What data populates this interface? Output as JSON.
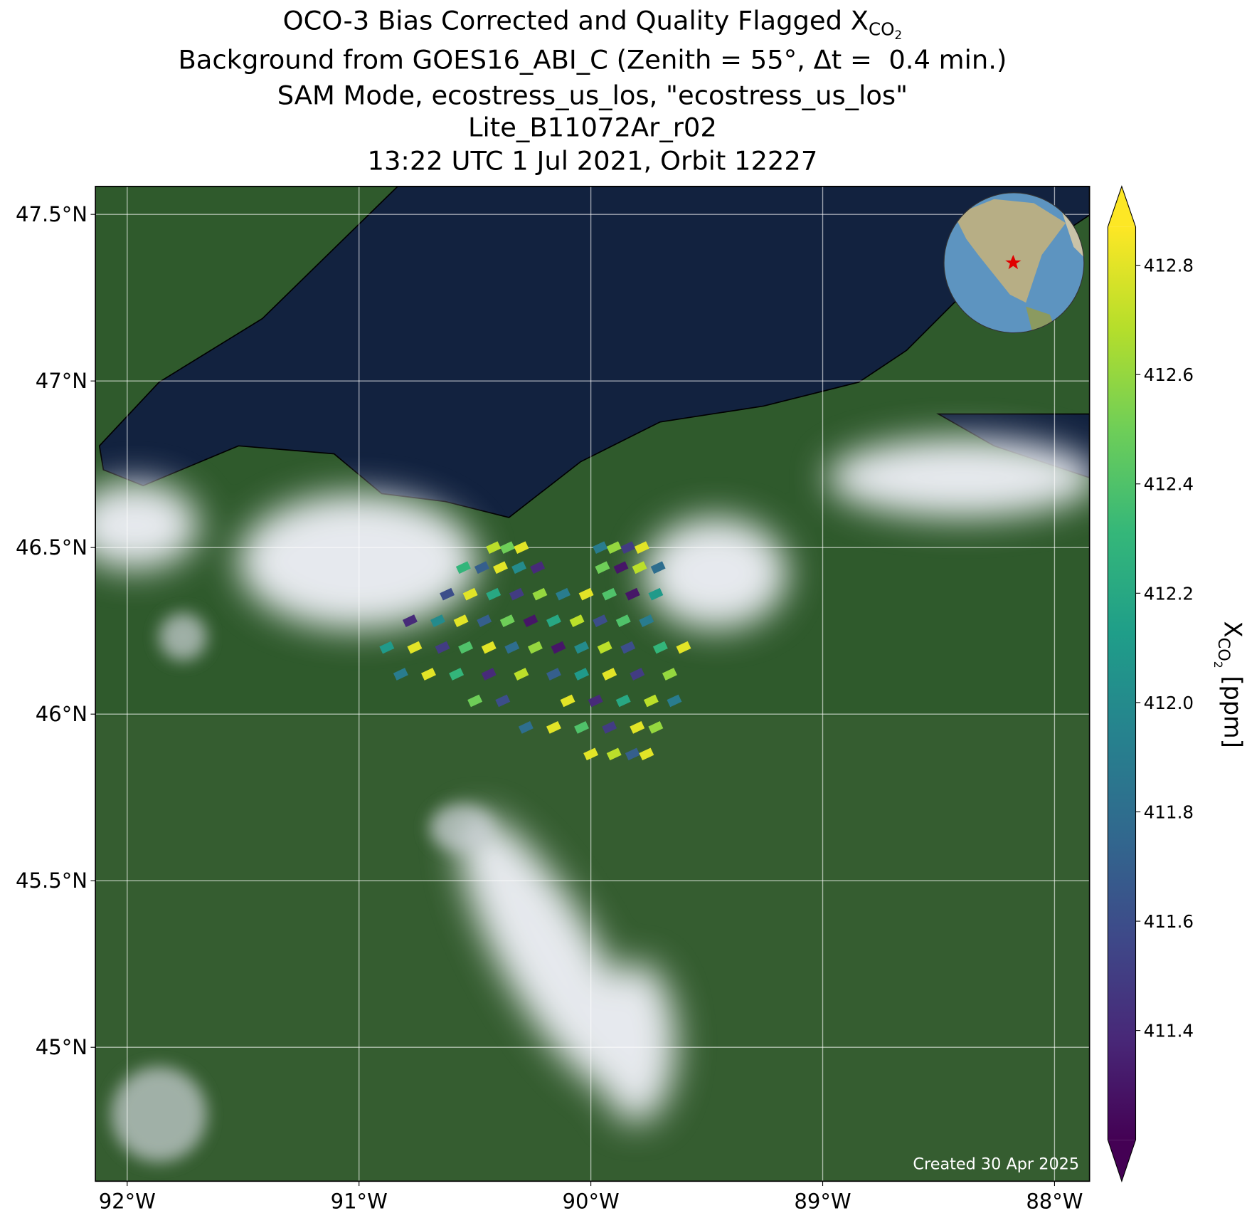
{
  "chart_data": {
    "type": "scatter",
    "title": [
      "OCO-3 Bias Corrected and Quality Flagged X",
      "CO",
      "2"
    ],
    "subtitle": [
      "Background from GOES16_ABI_C (Zenith = 55°, Δt =  0.4 min.)",
      "SAM Mode, ecostress_us_los, \"ecostress_us_los\"",
      "Lite_B11072Ar_r02",
      "13:22 UTC 1 Jul 2021, Orbit 12227"
    ],
    "xlim": [
      -92.137,
      -87.849
    ],
    "ylim": [
      44.598,
      47.584
    ],
    "xticks": [
      {
        "value": -92,
        "label": "92°W"
      },
      {
        "value": -91,
        "label": "91°W"
      },
      {
        "value": -90,
        "label": "90°W"
      },
      {
        "value": -89,
        "label": "89°W"
      },
      {
        "value": -88,
        "label": "88°W"
      }
    ],
    "yticks": [
      {
        "value": 45,
        "label": "45°N"
      },
      {
        "value": 45.5,
        "label": "45.5°N"
      },
      {
        "value": 46,
        "label": "46°N"
      },
      {
        "value": 46.5,
        "label": "46.5°N"
      },
      {
        "value": 47,
        "label": "47°N"
      },
      {
        "value": 47.5,
        "label": "47.5°N"
      }
    ],
    "grid": true,
    "colormap": "viridis",
    "clim": [
      411.2,
      412.87
    ],
    "cticks": [
      411.4,
      411.6,
      411.8,
      {
        "value": 412,
        "label": "412.0"
      },
      412.2,
      412.4,
      412.6,
      412.8
    ],
    "colorbar_label": [
      "X",
      "CO",
      "2",
      " [ppm]"
    ],
    "annotation": "Created 30 Apr 2025",
    "x": [
      -90.42,
      -90.36,
      -90.3,
      -89.96,
      -89.9,
      -89.84,
      -89.78,
      -90.55,
      -90.47,
      -90.39,
      -90.31,
      -90.23,
      -89.95,
      -89.87,
      -89.79,
      -89.71,
      -90.62,
      -90.52,
      -90.42,
      -90.32,
      -90.22,
      -90.12,
      -90.02,
      -89.92,
      -89.82,
      -89.72,
      -90.78,
      -90.66,
      -90.56,
      -90.46,
      -90.36,
      -90.26,
      -90.16,
      -90.06,
      -89.96,
      -89.86,
      -89.76,
      -90.88,
      -90.76,
      -90.64,
      -90.54,
      -90.44,
      -90.34,
      -90.24,
      -90.14,
      -90.04,
      -89.94,
      -89.84,
      -89.7,
      -89.6,
      -90.82,
      -90.7,
      -90.58,
      -90.44,
      -90.3,
      -90.16,
      -90.04,
      -89.92,
      -89.8,
      -89.66,
      -90.5,
      -90.38,
      -90.1,
      -89.98,
      -89.86,
      -89.74,
      -89.64,
      -90.28,
      -90.16,
      -90.04,
      -89.92,
      -89.8,
      -89.72,
      -90.0,
      -89.9,
      -89.82,
      -89.76
    ],
    "y": [
      46.5,
      46.5,
      46.5,
      46.5,
      46.5,
      46.5,
      46.5,
      46.44,
      46.44,
      46.44,
      46.44,
      46.44,
      46.44,
      46.44,
      46.44,
      46.44,
      46.36,
      46.36,
      46.36,
      46.36,
      46.36,
      46.36,
      46.36,
      46.36,
      46.36,
      46.36,
      46.28,
      46.28,
      46.28,
      46.28,
      46.28,
      46.28,
      46.28,
      46.28,
      46.28,
      46.28,
      46.28,
      46.2,
      46.2,
      46.2,
      46.2,
      46.2,
      46.2,
      46.2,
      46.2,
      46.2,
      46.2,
      46.2,
      46.2,
      46.2,
      46.12,
      46.12,
      46.12,
      46.12,
      46.12,
      46.12,
      46.12,
      46.12,
      46.12,
      46.12,
      46.04,
      46.04,
      46.04,
      46.04,
      46.04,
      46.04,
      46.04,
      45.96,
      45.96,
      45.96,
      45.96,
      45.96,
      45.96,
      45.88,
      45.88,
      45.88,
      45.88
    ],
    "values": [
      412.7,
      412.5,
      412.8,
      411.9,
      412.6,
      411.5,
      412.8,
      412.3,
      411.7,
      412.8,
      412.0,
      411.4,
      412.5,
      411.3,
      412.7,
      411.8,
      411.6,
      412.8,
      412.2,
      411.5,
      412.6,
      411.9,
      412.8,
      412.4,
      411.3,
      412.1,
      411.4,
      412.0,
      412.8,
      411.7,
      412.5,
      411.3,
      412.2,
      412.7,
      411.6,
      412.4,
      411.9,
      412.1,
      412.8,
      411.5,
      412.4,
      412.8,
      411.8,
      412.6,
      411.3,
      412.0,
      412.7,
      411.6,
      412.3,
      412.8,
      411.9,
      412.8,
      412.3,
      411.4,
      412.7,
      411.7,
      412.1,
      412.8,
      411.5,
      412.6,
      412.5,
      411.6,
      412.8,
      411.4,
      412.2,
      412.7,
      411.9,
      411.8,
      412.8,
      412.4,
      411.5,
      412.8,
      412.6,
      412.8,
      412.7,
      411.7,
      412.8
    ]
  }
}
